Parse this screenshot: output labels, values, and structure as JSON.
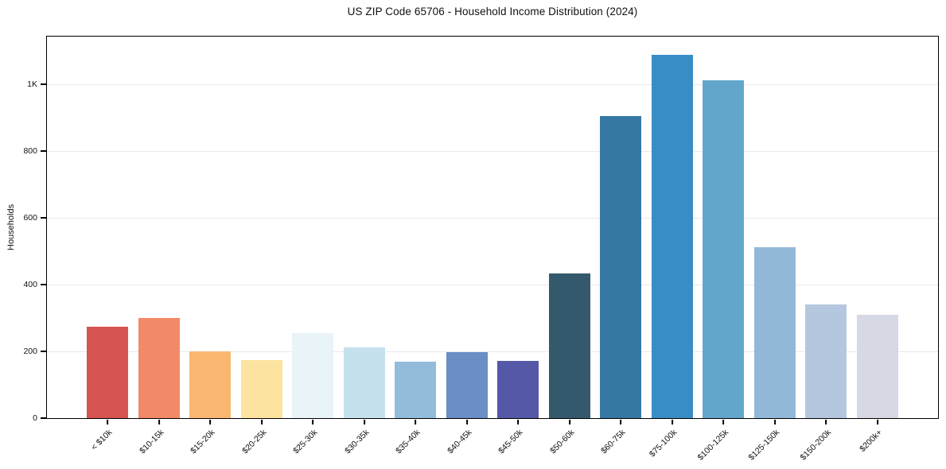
{
  "chart_data": {
    "type": "bar",
    "title": "US ZIP Code 65706 - Household Income Distribution (2024)",
    "xlabel": "",
    "ylabel": "Households",
    "categories": [
      "< $10k",
      "$10-15k",
      "$15-20k",
      "$20-25k",
      "$25-30k",
      "$30-35k",
      "$35-40k",
      "$40-45k",
      "$45-50k",
      "$50-60k",
      "$60-75k",
      "$75-100k",
      "$100-125k",
      "$125-150k",
      "$150-200k",
      "$200k+"
    ],
    "values": [
      275,
      301,
      200,
      173,
      256,
      212,
      168,
      197,
      171,
      434,
      904,
      1088,
      1013,
      512,
      341,
      309
    ],
    "bar_colors": [
      "#d5544f",
      "#f28a68",
      "#fab772",
      "#fde3a0",
      "#e8f4f7",
      "#c5e1ed",
      "#92bcda",
      "#6a8ec5",
      "#5558a7",
      "#35596c",
      "#3579a3",
      "#398dc5",
      "#62a7cb",
      "#92b8d8",
      "#b5c7de",
      "#d6d8e4"
    ],
    "ylim": [
      0,
      1143
    ],
    "yticks": [
      {
        "value": 0,
        "label": "0"
      },
      {
        "value": 200,
        "label": "200"
      },
      {
        "value": 400,
        "label": "400"
      },
      {
        "value": 600,
        "label": "600"
      },
      {
        "value": 800,
        "label": "800"
      },
      {
        "value": 1000,
        "label": "1K"
      }
    ],
    "grid": "horizontal",
    "legend": "none",
    "colors": {
      "background": "#ffffff",
      "grid_color": "#e9e9ef",
      "spine_color": "#000000",
      "text_color": "#111111"
    }
  }
}
